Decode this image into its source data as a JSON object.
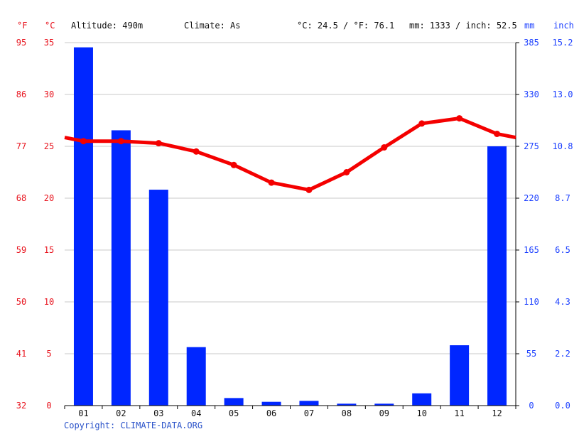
{
  "header": {
    "unit_f": "°F",
    "unit_c": "°C",
    "altitude": "Altitude: 490m",
    "climate": "Climate: As",
    "avg_temp": "°C: 24.5 / °F: 76.1",
    "avg_precip": "mm: 1333 / inch: 52.5",
    "unit_mm": "mm",
    "unit_inch": "inch"
  },
  "footer": {
    "copyright": "Copyright: CLIMATE-DATA.ORG"
  },
  "colors": {
    "temperature": "#f40000",
    "precipitation": "#0026ff",
    "grid": "#c8c8c8",
    "axis_red": "#e8141e",
    "axis_blue": "#1b3fff"
  },
  "chart_data": {
    "type": "bar",
    "categories": [
      "01",
      "02",
      "03",
      "04",
      "05",
      "06",
      "07",
      "08",
      "09",
      "10",
      "11",
      "12"
    ],
    "series": [
      {
        "type": "bar",
        "axis": "right",
        "values": [
          380,
          292,
          229,
          62,
          8,
          4,
          5,
          2,
          2,
          13,
          64,
          275
        ]
      },
      {
        "type": "line",
        "axis": "left",
        "values": [
          25.5,
          25.5,
          25.3,
          24.5,
          23.2,
          21.5,
          20.8,
          22.5,
          24.9,
          27.2,
          27.7,
          26.2
        ]
      }
    ],
    "y_left_c": {
      "ticks": [
        "35",
        "30",
        "25",
        "20",
        "15",
        "10",
        "5",
        "0"
      ],
      "ylim": [
        0,
        35
      ]
    },
    "y_left_f": {
      "ticks": [
        "95",
        "86",
        "77",
        "68",
        "59",
        "50",
        "41",
        "32"
      ]
    },
    "y_right_mm": {
      "ticks": [
        "385",
        "330",
        "275",
        "220",
        "165",
        "110",
        "55",
        "0"
      ],
      "ylim": [
        0,
        385
      ]
    },
    "y_right_inch": {
      "ticks": [
        "15.2",
        "13.0",
        "10.8",
        "8.7",
        "6.5",
        "4.3",
        "2.2",
        "0.0"
      ]
    },
    "grid": true
  }
}
